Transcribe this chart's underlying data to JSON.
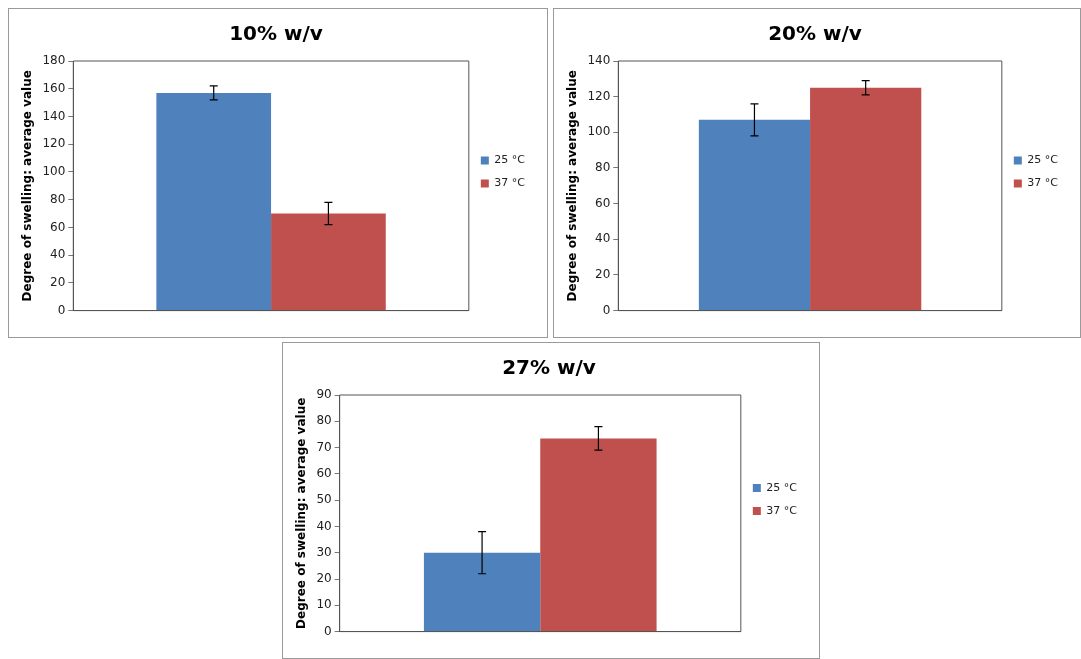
{
  "chart_data": [
    {
      "type": "bar",
      "title": "10% w/v",
      "ylabel": "Degree of swelling: average value",
      "categories": [
        null
      ],
      "series": [
        {
          "name": "25 °C",
          "color": "#4f81bd",
          "values": [
            157
          ],
          "errors": [
            5
          ]
        },
        {
          "name": "37 °C",
          "color": "#c0504d",
          "values": [
            70
          ],
          "errors": [
            8
          ]
        }
      ],
      "ylim": [
        0,
        180
      ],
      "yticks": [
        0,
        20,
        40,
        60,
        80,
        100,
        120,
        140,
        160,
        180
      ],
      "grid": false,
      "legend": "right"
    },
    {
      "type": "bar",
      "title": "20% w/v",
      "ylabel": "Degree of swelling: average value",
      "categories": [
        null
      ],
      "series": [
        {
          "name": "25 °C",
          "color": "#4f81bd",
          "values": [
            107
          ],
          "errors": [
            9
          ]
        },
        {
          "name": "37 °C",
          "color": "#c0504d",
          "values": [
            125
          ],
          "errors": [
            4
          ]
        }
      ],
      "ylim": [
        0,
        140
      ],
      "yticks": [
        0,
        20,
        40,
        60,
        80,
        100,
        120,
        140
      ],
      "grid": false,
      "legend": "right"
    },
    {
      "type": "bar",
      "title": "27% w/v",
      "ylabel": "Degree of swelling: average value",
      "categories": [
        null
      ],
      "series": [
        {
          "name": "25 °C",
          "color": "#4f81bd",
          "values": [
            30
          ],
          "errors": [
            8
          ]
        },
        {
          "name": "37 °C",
          "color": "#c0504d",
          "values": [
            73.5
          ],
          "errors": [
            4.5
          ]
        }
      ],
      "ylim": [
        0,
        90
      ],
      "yticks": [
        0,
        10,
        20,
        30,
        40,
        50,
        60,
        70,
        80,
        90
      ],
      "grid": false,
      "legend": "right"
    }
  ]
}
